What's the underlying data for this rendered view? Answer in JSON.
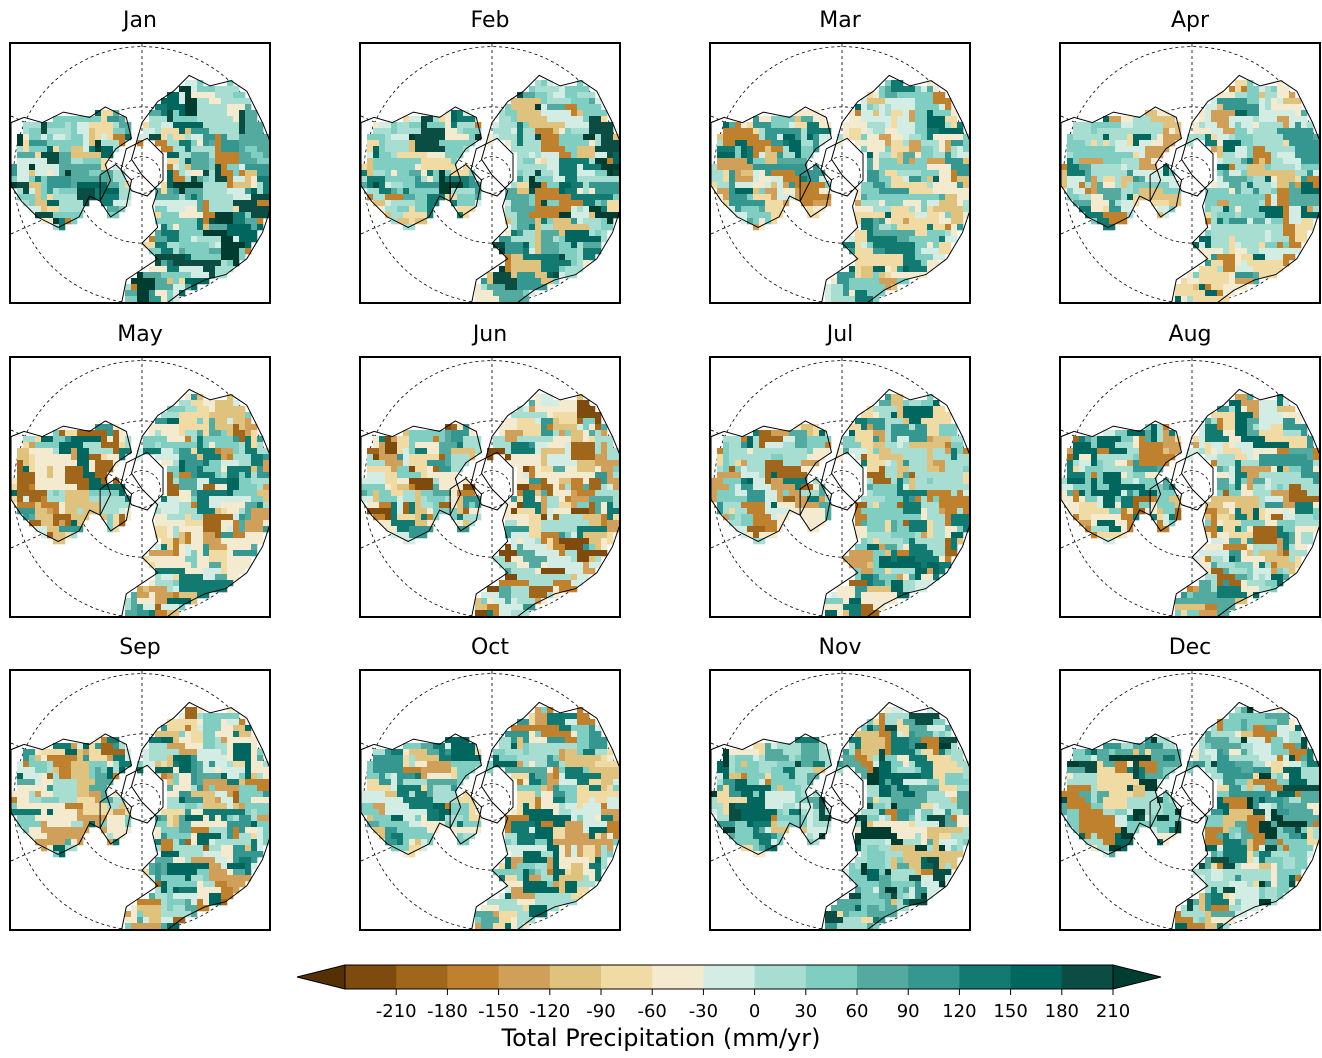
{
  "panels": [
    {
      "title": "Jan",
      "land": "wet",
      "seed": 11
    },
    {
      "title": "Feb",
      "land": "wet",
      "seed": 23
    },
    {
      "title": "Mar",
      "land": "mixed_wet",
      "seed": 37
    },
    {
      "title": "Apr",
      "land": "mixed_wet",
      "seed": 41
    },
    {
      "title": "May",
      "land": "mixed",
      "seed": 53
    },
    {
      "title": "Jun",
      "land": "mixed_dry",
      "seed": 67
    },
    {
      "title": "Jul",
      "land": "mixed",
      "seed": 71
    },
    {
      "title": "Aug",
      "land": "mixed",
      "seed": 83
    },
    {
      "title": "Sep",
      "land": "mixed",
      "seed": 97
    },
    {
      "title": "Oct",
      "land": "mixed_wet",
      "seed": 101
    },
    {
      "title": "Nov",
      "land": "wet",
      "seed": 113
    },
    {
      "title": "Dec",
      "land": "wet",
      "seed": 127
    }
  ],
  "colorbar": {
    "label": "Total Precipitation (mm/yr)",
    "ticks": [
      "-210",
      "-180",
      "-150",
      "-120",
      "-90",
      "-60",
      "-30",
      "0",
      "30",
      "60",
      "90",
      "120",
      "150",
      "180",
      "210"
    ],
    "colors": [
      "#543005",
      "#7f4a0e",
      "#a0661c",
      "#bf812d",
      "#d0a05a",
      "#dfc27d",
      "#f0dba5",
      "#f3ead0",
      "#d3ece4",
      "#a8ddd2",
      "#80cdc1",
      "#55aa9f",
      "#35978f",
      "#137a71",
      "#01665e",
      "#0b4d42",
      "#003c30"
    ],
    "extend": "both"
  }
}
